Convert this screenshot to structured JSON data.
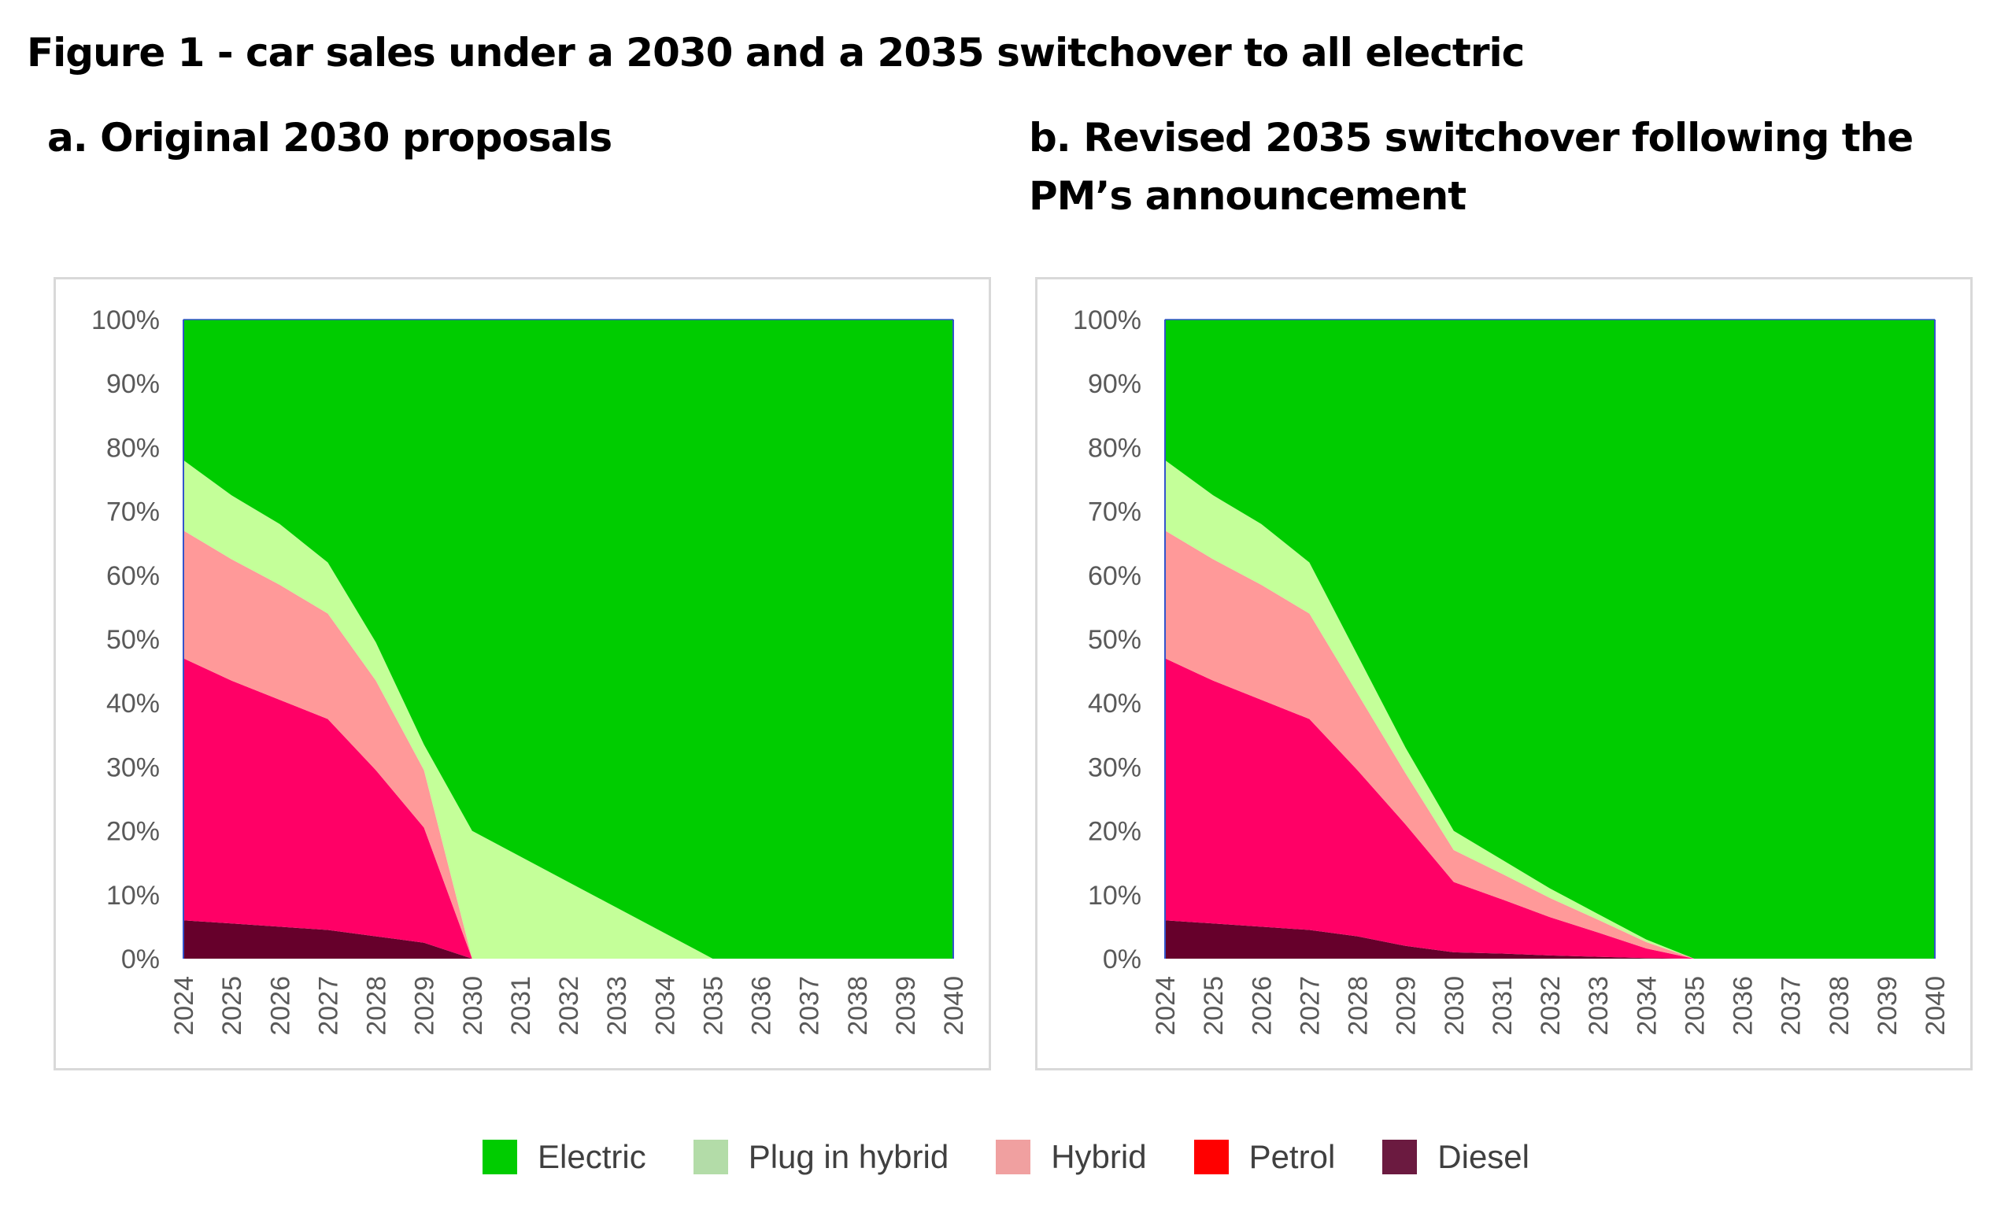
{
  "figure_title": "Figure 1 - car sales under a 2030 and a 2035 switchover to all electric",
  "colors": {
    "Electric": "#00cc00",
    "Plug in hybrid": "#c4ff99",
    "Hybrid": "#ff9999",
    "Petrol": "#ff0066",
    "Diesel": "#66002b"
  },
  "legend_colors": {
    "Electric": "#00cc00",
    "Plug in hybrid": "#b3dca8",
    "Hybrid": "#f0a0a0",
    "Petrol": "#ff0000",
    "Diesel": "#6b1a40"
  },
  "legend": [
    "Electric",
    "Plug in hybrid",
    "Hybrid",
    "Petrol",
    "Diesel"
  ],
  "chart_data": [
    {
      "type": "area",
      "stacked": true,
      "title": "a. Original 2030 proposals",
      "xlabel": "",
      "ylabel": "",
      "ylim": [
        0,
        100
      ],
      "yticks": [
        "0%",
        "10%",
        "20%",
        "30%",
        "40%",
        "50%",
        "60%",
        "70%",
        "80%",
        "90%",
        "100%"
      ],
      "x": [
        "2024",
        "2025",
        "2026",
        "2027",
        "2028",
        "2029",
        "2030",
        "2031",
        "2032",
        "2033",
        "2034",
        "2035",
        "2036",
        "2037",
        "2038",
        "2039",
        "2040"
      ],
      "series": [
        {
          "name": "Diesel",
          "values": [
            6,
            5.5,
            5,
            4.5,
            3.5,
            2.5,
            0,
            0,
            0,
            0,
            0,
            0,
            0,
            0,
            0,
            0,
            0
          ]
        },
        {
          "name": "Petrol",
          "values": [
            41,
            38,
            35.5,
            33,
            26,
            18,
            0,
            0,
            0,
            0,
            0,
            0,
            0,
            0,
            0,
            0,
            0
          ]
        },
        {
          "name": "Hybrid",
          "values": [
            20,
            19,
            18,
            16.5,
            14,
            9,
            0,
            0,
            0,
            0,
            0,
            0,
            0,
            0,
            0,
            0,
            0
          ]
        },
        {
          "name": "Plug in hybrid",
          "values": [
            11,
            10,
            9.5,
            8,
            6,
            4,
            20,
            16,
            12,
            8,
            4,
            0,
            0,
            0,
            0,
            0,
            0
          ]
        },
        {
          "name": "Electric",
          "values": [
            22,
            27.5,
            32,
            38,
            50.5,
            66.5,
            80,
            84,
            88,
            92,
            96,
            100,
            100,
            100,
            100,
            100,
            100
          ]
        }
      ]
    },
    {
      "type": "area",
      "stacked": true,
      "title": "b. Revised 2035 switchover following the PM’s announcement",
      "xlabel": "",
      "ylabel": "",
      "ylim": [
        0,
        100
      ],
      "yticks": [
        "0%",
        "10%",
        "20%",
        "30%",
        "40%",
        "50%",
        "60%",
        "70%",
        "80%",
        "90%",
        "100%"
      ],
      "x": [
        "2024",
        "2025",
        "2026",
        "2027",
        "2028",
        "2029",
        "2030",
        "2031",
        "2032",
        "2033",
        "2034",
        "2035",
        "2036",
        "2037",
        "2038",
        "2039",
        "2040"
      ],
      "series": [
        {
          "name": "Diesel",
          "values": [
            6,
            5.5,
            5,
            4.5,
            3.5,
            2,
            1,
            0.8,
            0.5,
            0.3,
            0.1,
            0,
            0,
            0,
            0,
            0,
            0
          ]
        },
        {
          "name": "Petrol",
          "values": [
            41,
            38,
            35.5,
            33,
            26,
            19,
            11,
            8.5,
            6,
            3.8,
            1.5,
            0,
            0,
            0,
            0,
            0,
            0
          ]
        },
        {
          "name": "Hybrid",
          "values": [
            20,
            19,
            18,
            16.5,
            12,
            8,
            5,
            4,
            3,
            2,
            1,
            0,
            0,
            0,
            0,
            0,
            0
          ]
        },
        {
          "name": "Plug in hybrid",
          "values": [
            11,
            10,
            9.5,
            8,
            6,
            4,
            3,
            2.2,
            1.5,
            0.9,
            0.4,
            0,
            0,
            0,
            0,
            0,
            0
          ]
        },
        {
          "name": "Electric",
          "values": [
            22,
            27.5,
            32,
            38,
            52.5,
            67,
            80,
            84.5,
            89,
            93,
            97,
            100,
            100,
            100,
            100,
            100,
            100
          ]
        }
      ]
    }
  ]
}
